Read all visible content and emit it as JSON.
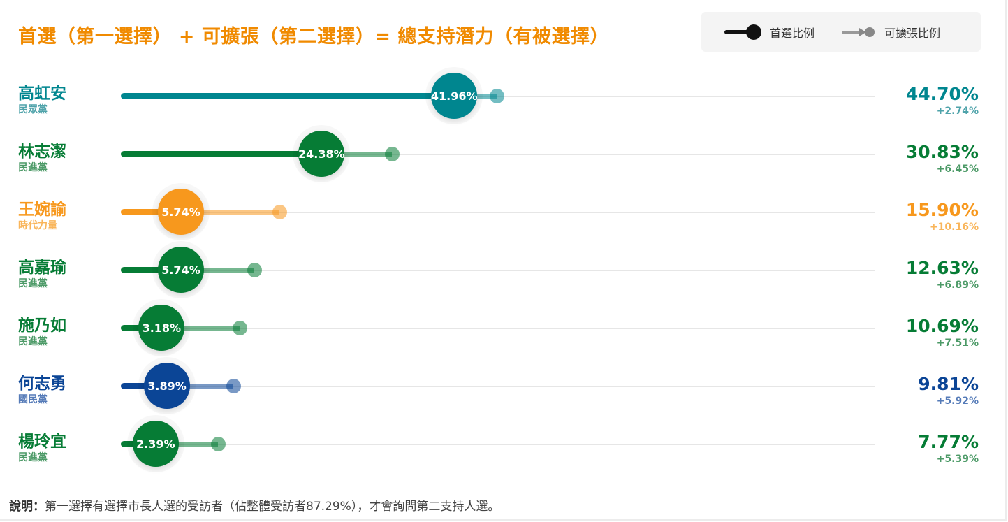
{
  "title": "首選（第一選擇） + 可擴張（第二選擇）= 總支持潛力（有被選擇）",
  "legend": {
    "first_label": "首選比例",
    "second_label": "可擴張比例",
    "first_icon": "line-with-dot-icon",
    "second_icon": "arrow-with-dot-icon"
  },
  "rows": [
    {
      "name": "高虹安",
      "party": "民眾黨",
      "first": "41.96%",
      "total": "44.70%",
      "delta": "+2.74%",
      "first_v": 41.96,
      "total_v": 44.7,
      "color": "#00868f",
      "party_color": "#4fa3aa"
    },
    {
      "name": "林志潔",
      "party": "民進黨",
      "first": "24.38%",
      "total": "30.83%",
      "delta": "+6.45%",
      "first_v": 24.38,
      "total_v": 30.83,
      "color": "#067c35",
      "party_color": "#4c9a67"
    },
    {
      "name": "王婉諭",
      "party": "時代力量",
      "first": "5.74%",
      "total": "15.90%",
      "delta": "+10.16%",
      "first_v": 5.74,
      "total_v": 15.9,
      "color": "#f7981d",
      "party_color": "#f9b55a"
    },
    {
      "name": "高嘉瑜",
      "party": "民進黨",
      "first": "5.74%",
      "total": "12.63%",
      "delta": "+6.89%",
      "first_v": 5.74,
      "total_v": 12.63,
      "color": "#067c35",
      "party_color": "#4c9a67"
    },
    {
      "name": "施乃如",
      "party": "民進黨",
      "first": "3.18%",
      "total": "10.69%",
      "delta": "+7.51%",
      "first_v": 3.18,
      "total_v": 10.69,
      "color": "#067c35",
      "party_color": "#4c9a67"
    },
    {
      "name": "何志勇",
      "party": "國民黨",
      "first": "3.89%",
      "total": "9.81%",
      "delta": "+5.92%",
      "first_v": 3.89,
      "total_v": 9.81,
      "color": "#0b4596",
      "party_color": "#557bb8"
    },
    {
      "name": "楊玲宜",
      "party": "民進黨",
      "first": "2.39%",
      "total": "7.77%",
      "delta": "+5.39%",
      "first_v": 2.39,
      "total_v": 7.77,
      "color": "#067c35",
      "party_color": "#4c9a67"
    }
  ],
  "note": {
    "label": "說明：",
    "text": "第一選擇有選擇市長人選的受訪者（佔整體受訪者87.29%），才會詢問第二支持人選。"
  },
  "chart_data": {
    "type": "dumbbell",
    "title": "首選（第一選擇） + 可擴張（第二選擇）= 總支持潛力（有被選擇）",
    "categories": [
      "高虹安",
      "林志潔",
      "王婉諭",
      "高嘉瑜",
      "施乃如",
      "何志勇",
      "楊玲宜"
    ],
    "parties": [
      "民眾黨",
      "民進黨",
      "時代力量",
      "民進黨",
      "民進黨",
      "國民黨",
      "民進黨"
    ],
    "series": [
      {
        "name": "首選比例",
        "values": [
          41.96,
          24.38,
          5.74,
          5.74,
          3.18,
          3.89,
          2.39
        ]
      },
      {
        "name": "可擴張比例",
        "values": [
          2.74,
          6.45,
          10.16,
          6.89,
          7.51,
          5.92,
          5.39
        ]
      },
      {
        "name": "總支持潛力",
        "values": [
          44.7,
          30.83,
          15.9,
          12.63,
          10.69,
          9.81,
          7.77
        ]
      }
    ],
    "unit": "%",
    "legend_position": "top-right",
    "annotation": "說明：第一選擇有選擇市長人選的受訪者（佔整體受訪者87.29%），才會詢問第二支持人選。"
  }
}
